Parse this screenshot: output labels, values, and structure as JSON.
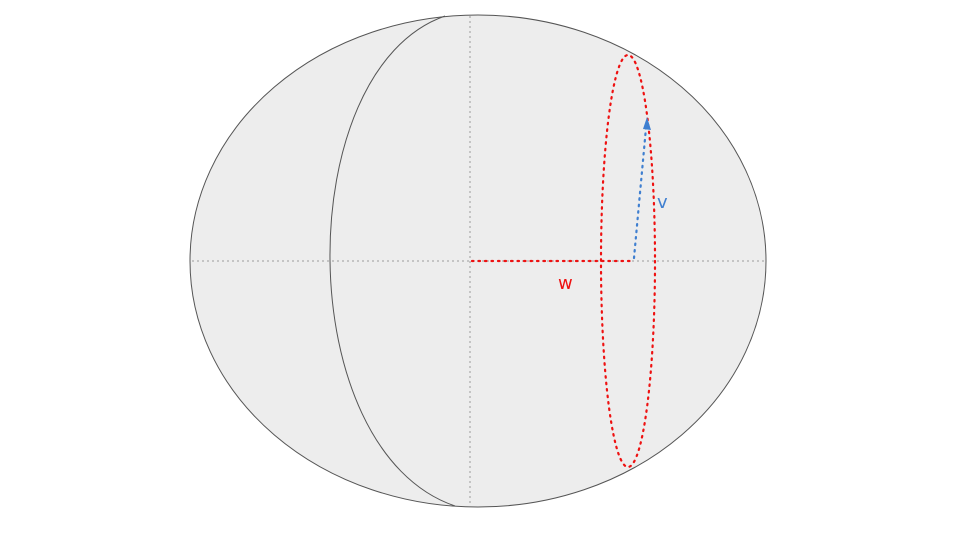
{
  "labels": {
    "w": "w",
    "v": "v"
  },
  "colors": {
    "background": "#ffffff",
    "sphere_fill": "#ededed",
    "sphere_stroke": "#555555",
    "axis_stroke": "#9a9a9a",
    "w_color": "#ee1111",
    "v_color": "#3f7fd0"
  },
  "icons": {
    "v_arrowhead": "triangle-arrow"
  }
}
